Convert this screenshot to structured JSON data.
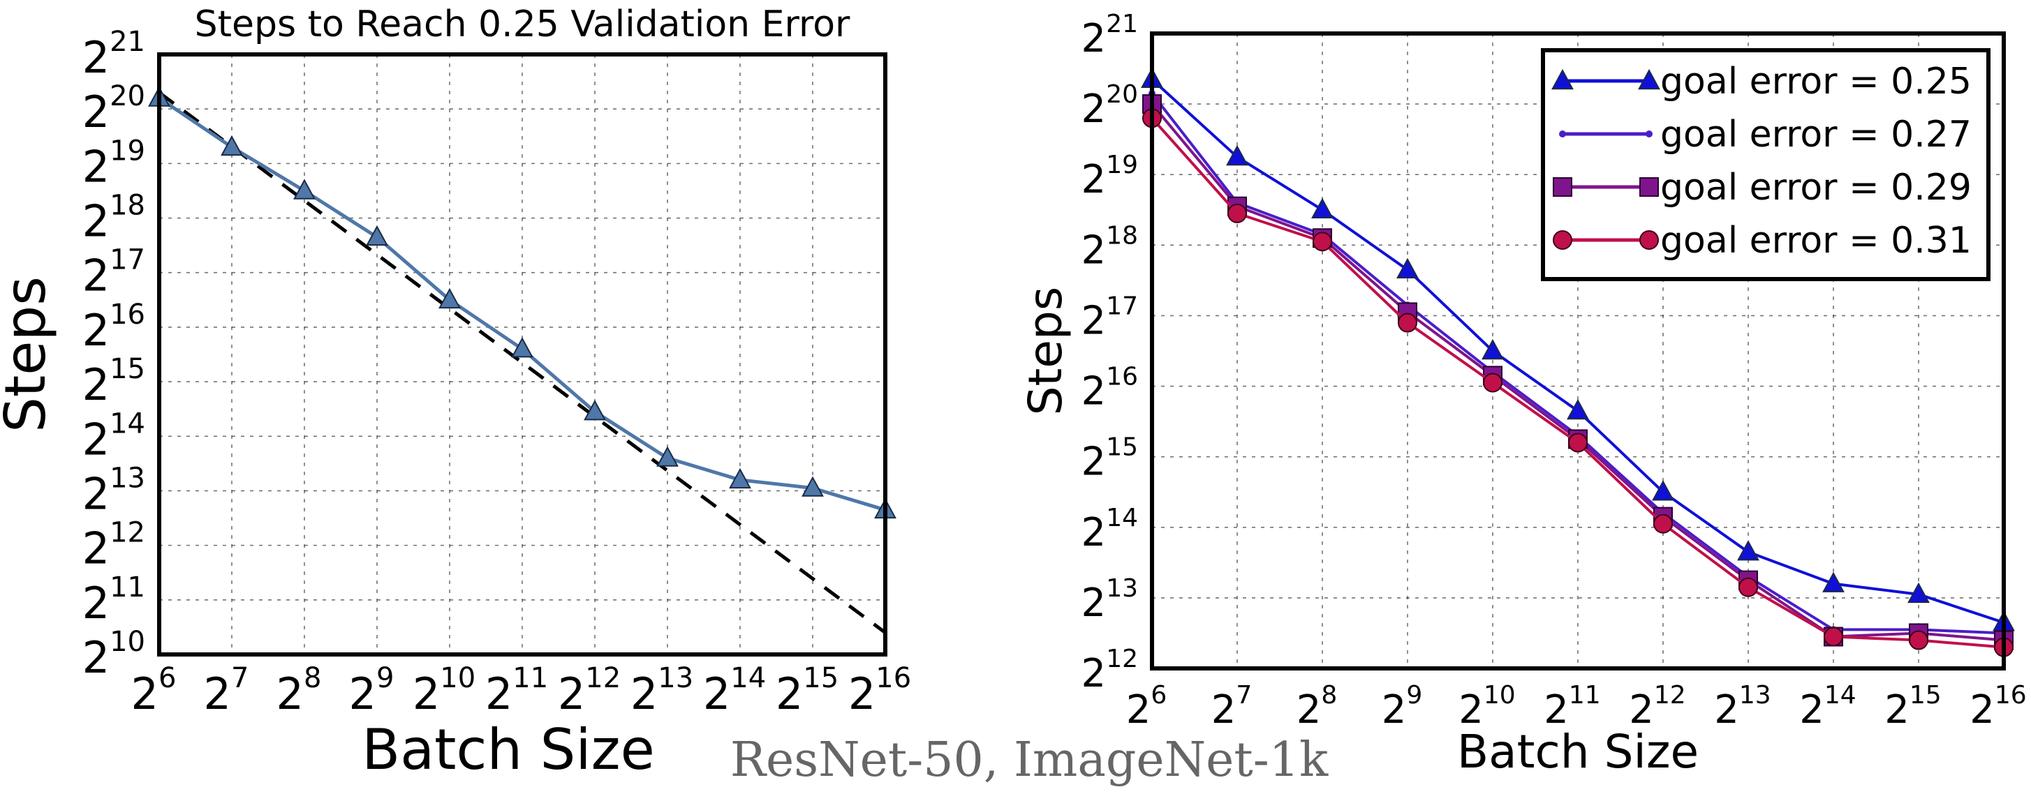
{
  "caption": "ResNet-50, ImageNet-1k",
  "chart_data": [
    {
      "type": "line",
      "title": "Steps to Reach 0.25 Validation Error",
      "xlabel": "Batch Size",
      "ylabel": "Steps",
      "x_scale": "log2",
      "y_scale": "log2",
      "x_exponent_range": [
        6,
        16
      ],
      "y_exponent_range": [
        10,
        21
      ],
      "grid": true,
      "series": [
        {
          "color": "#4f77a8",
          "marker": "triangle",
          "points": [
            {
              "x_exp": 6,
              "y_exp": 20.2
            },
            {
              "x_exp": 7,
              "y_exp": 19.3
            },
            {
              "x_exp": 8,
              "y_exp": 18.5
            },
            {
              "x_exp": 9,
              "y_exp": 17.65
            },
            {
              "x_exp": 10,
              "y_exp": 16.5
            },
            {
              "x_exp": 11,
              "y_exp": 15.6
            },
            {
              "x_exp": 12,
              "y_exp": 14.45
            },
            {
              "x_exp": 13,
              "y_exp": 13.6
            },
            {
              "x_exp": 14,
              "y_exp": 13.2
            },
            {
              "x_exp": 15,
              "y_exp": 13.05
            },
            {
              "x_exp": 16,
              "y_exp": 12.65
            }
          ]
        }
      ],
      "reference_line": {
        "style": "dashed",
        "color": "#000000",
        "from": {
          "x_exp": 6,
          "y_exp": 20.3
        },
        "to": {
          "x_exp": 16,
          "y_exp": 10.4
        }
      }
    },
    {
      "type": "line",
      "xlabel": "Batch Size",
      "ylabel": "Steps",
      "x_scale": "log2",
      "y_scale": "log2",
      "x_exponent_range": [
        6,
        16
      ],
      "y_exponent_range": [
        12,
        21
      ],
      "grid": true,
      "legend_position": "top-right",
      "series": [
        {
          "name": "goal error = 0.25",
          "color": "#1010d8",
          "marker": "triangle",
          "points": [
            {
              "x_exp": 6,
              "y_exp": 20.35
            },
            {
              "x_exp": 7,
              "y_exp": 19.25
            },
            {
              "x_exp": 8,
              "y_exp": 18.5
            },
            {
              "x_exp": 9,
              "y_exp": 17.65
            },
            {
              "x_exp": 10,
              "y_exp": 16.5
            },
            {
              "x_exp": 11,
              "y_exp": 15.65
            },
            {
              "x_exp": 12,
              "y_exp": 14.5
            },
            {
              "x_exp": 13,
              "y_exp": 13.65
            },
            {
              "x_exp": 14,
              "y_exp": 13.2
            },
            {
              "x_exp": 15,
              "y_exp": 13.05
            },
            {
              "x_exp": 16,
              "y_exp": 12.65
            }
          ]
        },
        {
          "name": "goal error = 0.27",
          "color": "#4a1ec8",
          "marker": "dot",
          "points": [
            {
              "x_exp": 6,
              "y_exp": 20.15
            },
            {
              "x_exp": 7,
              "y_exp": 18.6
            },
            {
              "x_exp": 8,
              "y_exp": 18.15
            },
            {
              "x_exp": 9,
              "y_exp": 17.15
            },
            {
              "x_exp": 10,
              "y_exp": 16.2
            },
            {
              "x_exp": 11,
              "y_exp": 15.3
            },
            {
              "x_exp": 12,
              "y_exp": 14.2
            },
            {
              "x_exp": 13,
              "y_exp": 13.3
            },
            {
              "x_exp": 14,
              "y_exp": 12.55
            },
            {
              "x_exp": 15,
              "y_exp": 12.55
            },
            {
              "x_exp": 16,
              "y_exp": 12.5
            }
          ]
        },
        {
          "name": "goal error = 0.29",
          "color": "#80148c",
          "marker": "square",
          "points": [
            {
              "x_exp": 6,
              "y_exp": 20.0
            },
            {
              "x_exp": 7,
              "y_exp": 18.55
            },
            {
              "x_exp": 8,
              "y_exp": 18.1
            },
            {
              "x_exp": 9,
              "y_exp": 17.05
            },
            {
              "x_exp": 10,
              "y_exp": 16.15
            },
            {
              "x_exp": 11,
              "y_exp": 15.25
            },
            {
              "x_exp": 12,
              "y_exp": 14.15
            },
            {
              "x_exp": 13,
              "y_exp": 13.25
            },
            {
              "x_exp": 14,
              "y_exp": 12.45
            },
            {
              "x_exp": 15,
              "y_exp": 12.5
            },
            {
              "x_exp": 16,
              "y_exp": 12.4
            }
          ]
        },
        {
          "name": "goal error = 0.31",
          "color": "#c0104a",
          "marker": "circle",
          "points": [
            {
              "x_exp": 6,
              "y_exp": 19.8
            },
            {
              "x_exp": 7,
              "y_exp": 18.45
            },
            {
              "x_exp": 8,
              "y_exp": 18.05
            },
            {
              "x_exp": 9,
              "y_exp": 16.9
            },
            {
              "x_exp": 10,
              "y_exp": 16.05
            },
            {
              "x_exp": 11,
              "y_exp": 15.2
            },
            {
              "x_exp": 12,
              "y_exp": 14.05
            },
            {
              "x_exp": 13,
              "y_exp": 13.15
            },
            {
              "x_exp": 14,
              "y_exp": 12.45
            },
            {
              "x_exp": 15,
              "y_exp": 12.4
            },
            {
              "x_exp": 16,
              "y_exp": 12.3
            }
          ]
        }
      ]
    }
  ]
}
